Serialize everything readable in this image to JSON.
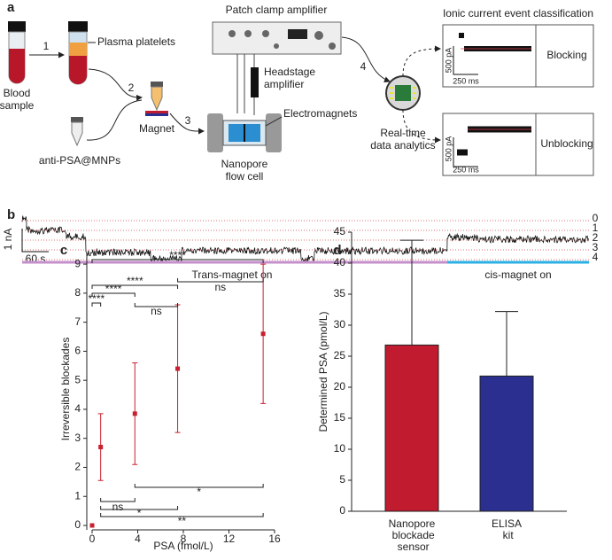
{
  "panel_a": {
    "label": "a",
    "blood_sample": [
      "Blood",
      "sample"
    ],
    "step_1": "1",
    "plasma_platelets": "Plasma platelets",
    "step_2": "2",
    "anti_psa": "anti-PSA@MNPs",
    "magnet": "Magnet",
    "step_3": "3",
    "patch_clamp": "Patch clamp amplifier",
    "headstage": [
      "Headstage",
      "amplifier"
    ],
    "electromagnets": "Electromagnets",
    "flow_cell": [
      "Nanopore",
      "flow cell"
    ],
    "step_4": "4",
    "analytics": [
      "Real-time",
      "data analytics"
    ],
    "classification_title": "Ionic current event classification",
    "event_1": {
      "current": "500 pA",
      "time": "250 ms",
      "class": "Blocking"
    },
    "event_2": {
      "current": "500 pA",
      "time": "250 ms",
      "class": "Unblocking"
    }
  },
  "panel_b": {
    "label": "b",
    "levels": [
      "0",
      "1",
      "2",
      "3",
      "4"
    ],
    "current_scale": "1 nA",
    "time_scale": "60 s",
    "trans": "Trans-magnet on",
    "cis": "cis-magnet on"
  },
  "chart_data": [
    {
      "type": "scatter",
      "panel": "c",
      "xlabel": "PSA (fmol/L)",
      "ylabel": "Irreversible blockades",
      "xlim": [
        0,
        16
      ],
      "xticks": [
        0,
        4,
        8,
        12,
        16
      ],
      "ylim": [
        0,
        9.4
      ],
      "yticks": [
        0,
        1,
        2,
        3,
        4,
        5,
        6,
        7,
        8,
        9
      ],
      "series": [
        {
          "color": "#c8202f",
          "x": [
            0,
            0.75,
            3.75,
            7.5,
            15
          ],
          "values": [
            0,
            2.7,
            3.85,
            5.4,
            6.6
          ],
          "errors": [
            0,
            1.15,
            1.75,
            2.2,
            2.4
          ]
        }
      ],
      "annotations": [
        "****",
        "****",
        "****",
        "****",
        "ns",
        "ns",
        "*",
        "ns",
        "*",
        "**"
      ]
    },
    {
      "type": "bar",
      "panel": "d",
      "ylabel": "Determined PSA (pmol/L)",
      "categories": [
        "Nanopore blockade sensor",
        "ELISA kit"
      ],
      "ylim": [
        0,
        45
      ],
      "yticks": [
        0,
        5,
        10,
        15,
        20,
        25,
        30,
        35,
        40,
        45
      ],
      "values": [
        26.8,
        21.8
      ],
      "errors": [
        16.9,
        10.4
      ],
      "colors": [
        "#c01b2e",
        "#2b2f8f"
      ]
    }
  ]
}
